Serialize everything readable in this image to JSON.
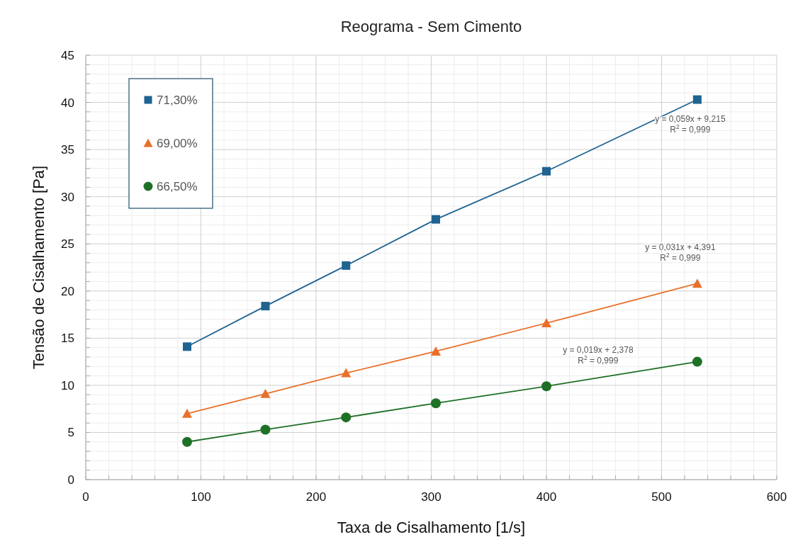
{
  "chart_data": {
    "type": "line",
    "title": "Reograma - Sem Cimento",
    "xlabel": "Taxa de Cisalhamento [1/s]",
    "ylabel": "Tensão de Cisalhamento [Pa]",
    "xlim": [
      0,
      600
    ],
    "xticks": [
      0,
      100,
      200,
      300,
      400,
      500,
      600
    ],
    "ylim": [
      0,
      45
    ],
    "yticks": [
      0,
      5,
      10,
      15,
      20,
      25,
      30,
      35,
      40,
      45
    ],
    "grid": true,
    "legend": "top left",
    "line_style": "solid",
    "x": [
      88,
      156,
      226,
      304,
      400,
      531
    ],
    "series": [
      {
        "name": "71,30%",
        "color": "#1f6391",
        "marker": "square",
        "values": [
          14.1,
          18.4,
          22.7,
          27.6,
          32.7,
          40.3
        ]
      },
      {
        "name": "69,00%",
        "color": "#e8702a",
        "marker": "triangle",
        "values": [
          7.0,
          9.1,
          11.3,
          13.6,
          16.6,
          20.8
        ]
      },
      {
        "name": "66,50%",
        "color": "#1e7027",
        "marker": "circle",
        "values": [
          4.0,
          5.3,
          6.6,
          8.1,
          9.9,
          12.5
        ]
      }
    ],
    "annotations": [
      "y = 0,059x + 9,215",
      "R$^{2}$ = 0,999",
      "y = 0,031x + 4,391",
      "R$^{2}$ = 0,999",
      "y = 0,019x + 2,378",
      "R$^{2}$ = 0,999"
    ]
  }
}
